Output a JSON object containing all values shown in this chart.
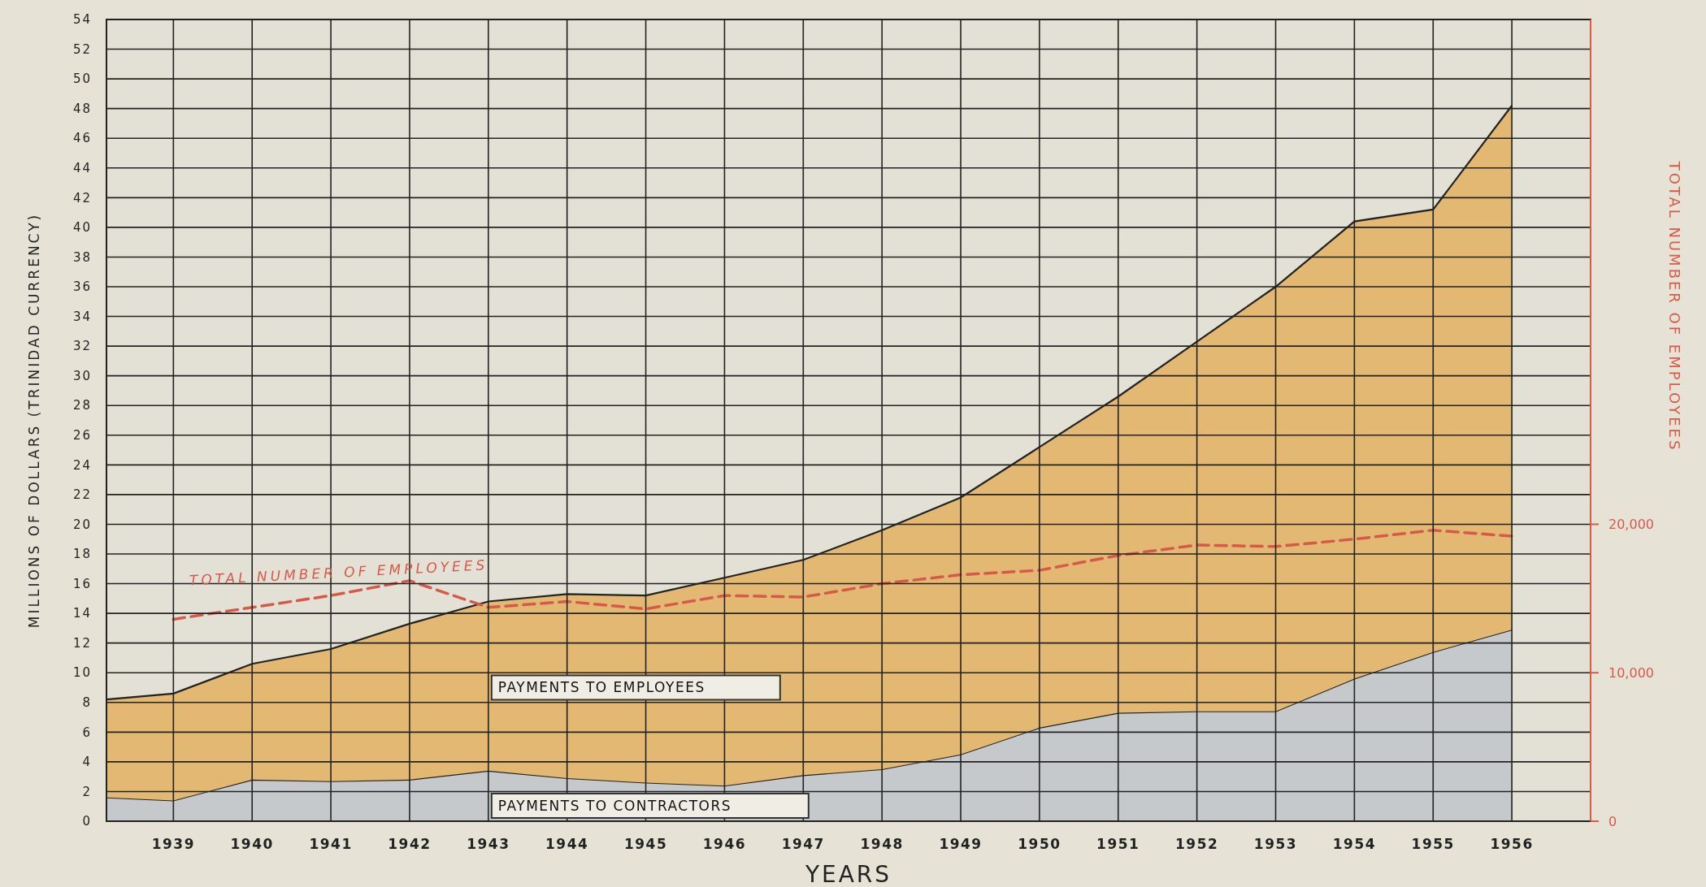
{
  "chart_data": {
    "type": "area",
    "stacked": true,
    "xlabel": "YEARS",
    "ylabel": "MILLIONS OF DOLLARS (TRINIDAD CURRENCY)",
    "y2label": "TOTAL NUMBER OF EMPLOYEES",
    "x": [
      1938.15,
      1939,
      1940,
      1941,
      1942,
      1943,
      1944,
      1945,
      1946,
      1947,
      1948,
      1949,
      1950,
      1951,
      1952,
      1953,
      1954,
      1955,
      1956
    ],
    "series": [
      {
        "name": "PAYMENTS TO CONTRACTORS",
        "color": "#c5c9cb",
        "values": [
          1.6,
          1.4,
          2.8,
          2.7,
          2.8,
          3.4,
          2.9,
          2.6,
          2.4,
          3.1,
          3.5,
          4.5,
          6.3,
          7.3,
          7.4,
          7.4,
          9.6,
          11.4,
          12.9
        ]
      },
      {
        "name": "PAYMENTS TO EMPLOYEES",
        "color": "#e3b872",
        "values": [
          6.6,
          7.2,
          7.8,
          8.9,
          10.5,
          11.4,
          12.4,
          12.6,
          14.0,
          14.5,
          16.1,
          17.3,
          18.9,
          21.3,
          24.9,
          28.6,
          30.8,
          29.8,
          35.3
        ]
      },
      {
        "type": "line",
        "axis": "y2",
        "line_style": "dashed",
        "color": "#d65a4a",
        "x": [
          1939,
          1940,
          1941,
          1942,
          1943,
          1944,
          1945,
          1946,
          1947,
          1948,
          1949,
          1950,
          1951,
          1952,
          1953,
          1954,
          1955,
          1956
        ],
        "values": [
          13600,
          14400,
          15200,
          16200,
          14400,
          14800,
          14300,
          15200,
          15100,
          16000,
          16600,
          16900,
          17900,
          18600,
          18500,
          19000,
          19600,
          19200
        ]
      }
    ],
    "annotations": [
      "TOTAL NUMBER OF EMPLOYEES"
    ],
    "xlim": [
      1938.15,
      1957
    ],
    "xticks": [
      1939,
      1940,
      1941,
      1942,
      1943,
      1944,
      1945,
      1946,
      1947,
      1948,
      1949,
      1950,
      1951,
      1952,
      1953,
      1954,
      1955,
      1956
    ],
    "ylim": [
      0,
      54
    ],
    "yticks": [
      0,
      2,
      4,
      6,
      8,
      10,
      12,
      14,
      16,
      18,
      20,
      22,
      24,
      26,
      28,
      30,
      32,
      34,
      36,
      38,
      40,
      42,
      44,
      46,
      48,
      50,
      52,
      54
    ],
    "y2lim": [
      0,
      54000
    ],
    "y2ticks": [
      0,
      {
        "value": 10000,
        "label": "10,000"
      },
      {
        "value": 20000,
        "label": "20,000"
      }
    ],
    "grid": true,
    "legend": false,
    "marker": "none"
  }
}
